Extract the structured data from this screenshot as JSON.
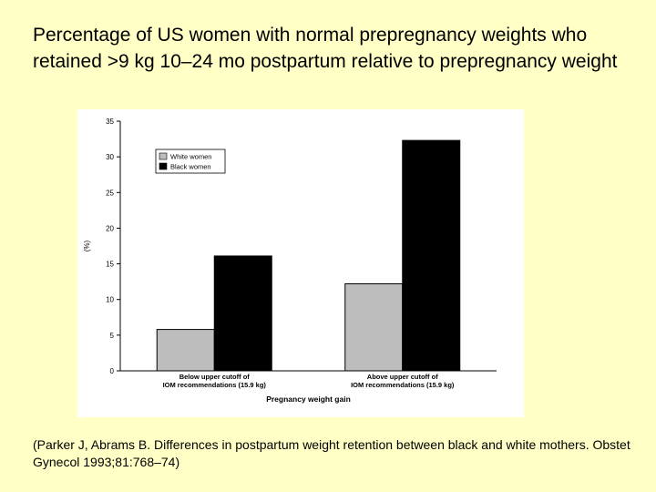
{
  "title": "Percentage of US women with normal prepregnancy weights who retained >9 kg 10–24 mo postpartum relative to prepregnancy weight",
  "citation": "(Parker J, Abrams B. Differences in postpartum weight retention between black and white mothers. Obstet Gynecol 1993;81:768–74)",
  "colors": {
    "background": "#ffffc6",
    "white_women": "#bdbdbd",
    "black_women": "#000000"
  },
  "chart_data": {
    "type": "bar",
    "categories": [
      [
        "Below upper cutoff of",
        "IOM recommendations (15.9 kg)"
      ],
      [
        "Above upper cutoff of",
        "IOM recommendations (15.9 kg)"
      ]
    ],
    "series": [
      {
        "name": "White women",
        "values": [
          5.8,
          12.2
        ]
      },
      {
        "name": "Black women",
        "values": [
          16.1,
          32.3
        ]
      }
    ],
    "xlabel": "Pregnancy weight gain",
    "ylabel": "(%)",
    "ylim": [
      0,
      35
    ],
    "yticks": [
      0,
      5,
      10,
      15,
      20,
      25,
      30,
      35
    ],
    "grid": false,
    "legend": "top-left"
  }
}
